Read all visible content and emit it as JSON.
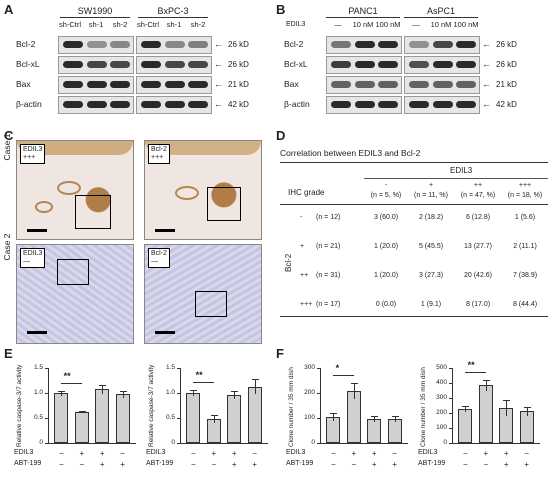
{
  "panels": {
    "A": "A",
    "B": "B",
    "C": "C",
    "D": "D",
    "E": "E",
    "F": "F"
  },
  "panelA": {
    "groups": [
      {
        "title": "SW1990",
        "lanes": [
          "sh-Ctrl",
          "sh-1",
          "sh-2"
        ]
      },
      {
        "title": "BxPC-3",
        "lanes": [
          "sh-Ctrl",
          "sh-1",
          "sh-2"
        ]
      }
    ],
    "rows": [
      "Bcl-2",
      "Bcl-xL",
      "Bax",
      "β-actin"
    ],
    "kd": [
      "26 kD",
      "26 kD",
      "21 kD",
      "42 kD"
    ]
  },
  "panelB": {
    "treatment_label": "EDIL3",
    "groups": [
      {
        "title": "PANC1",
        "lanes": [
          "—",
          "10 nM",
          "100 nM"
        ]
      },
      {
        "title": "AsPC1",
        "lanes": [
          "—",
          "10 nM",
          "100 nM"
        ]
      }
    ],
    "rows": [
      "Bcl-2",
      "Bcl-xL",
      "Bax",
      "β-actin"
    ],
    "kd": [
      "26 kD",
      "26 kD",
      "21 kD",
      "42 kD"
    ]
  },
  "panelC": {
    "cases": [
      "Case 1",
      "Case 2"
    ],
    "labels": [
      [
        "EDIL3",
        "+++"
      ],
      [
        "Bcl-2",
        "+++"
      ],
      [
        "EDIL3",
        "—"
      ],
      [
        "Bcl-2",
        "—"
      ]
    ],
    "colors": {
      "brown": "#a87a45",
      "blue": "#a9abd0",
      "bg": "#e9e4ea"
    }
  },
  "panelD": {
    "title": "Correlation between EDIL3 and Bcl-2",
    "col_header": "EDIL3",
    "row_header": "IHC grade",
    "side_label": "Bcl-2",
    "cols": [
      {
        "grade": "-",
        "n": "(n = 5, %)"
      },
      {
        "grade": "+",
        "n": "(n = 11, %)"
      },
      {
        "grade": "++",
        "n": "(n = 47, %)"
      },
      {
        "grade": "+++",
        "n": "(n = 18, %)"
      }
    ],
    "rows": [
      {
        "grade": "-",
        "n": "(n = 12)",
        "cells": [
          "3 (60.0)",
          "2 (18.2)",
          "6 (12.8)",
          "1 (5.6)"
        ]
      },
      {
        "grade": "+",
        "n": "(n = 21)",
        "cells": [
          "1 (20.0)",
          "5 (45.5)",
          "13 (27.7)",
          "2 (11.1)"
        ]
      },
      {
        "grade": "++",
        "n": "(n = 31)",
        "cells": [
          "1 (20.0)",
          "3 (27.3)",
          "20 (42.6)",
          "7 (38.9)"
        ]
      },
      {
        "grade": "+++",
        "n": "(n = 17)",
        "cells": [
          "0 (0.0)",
          "1 (9.1)",
          "8 (17.0)",
          "8 (44.4)"
        ]
      }
    ]
  },
  "chart_data": [
    {
      "type": "bar",
      "panel": "E",
      "ylabel": "Relative caspase-3/7 activity",
      "ylim": [
        0,
        1.5
      ],
      "yticks": [
        "0",
        "0.5",
        "1.0",
        "1.5"
      ],
      "values": [
        1.0,
        0.63,
        1.08,
        0.98
      ],
      "errors": [
        0.05,
        0.02,
        0.09,
        0.07
      ],
      "row_labels": [
        "EDIL3",
        "ABT-199"
      ],
      "conditions": [
        [
          "−",
          "−"
        ],
        [
          "+",
          "−"
        ],
        [
          "+",
          "+"
        ],
        [
          "−",
          "+"
        ]
      ],
      "significance": "**",
      "sig_pair": [
        0,
        1
      ]
    },
    {
      "type": "bar",
      "panel": "E",
      "ylabel": "Relative caspase-3/7 activity",
      "ylim": [
        0,
        1.5
      ],
      "yticks": [
        "0",
        "0.5",
        "1.0",
        "1.5"
      ],
      "values": [
        1.0,
        0.48,
        0.97,
        1.13
      ],
      "errors": [
        0.06,
        0.08,
        0.08,
        0.15
      ],
      "row_labels": [
        "EDIL3",
        "ABT-199"
      ],
      "conditions": [
        [
          "−",
          "−"
        ],
        [
          "+",
          "−"
        ],
        [
          "+",
          "+"
        ],
        [
          "−",
          "+"
        ]
      ],
      "significance": "**",
      "sig_pair": [
        0,
        1
      ]
    },
    {
      "type": "bar",
      "panel": "F",
      "ylabel": "Clone number / 35 mm dish",
      "ylim": [
        0,
        300
      ],
      "yticks": [
        "0",
        "100",
        "200",
        "300"
      ],
      "values": [
        105,
        210,
        97,
        98
      ],
      "errors": [
        15,
        32,
        13,
        12
      ],
      "row_labels": [
        "EDIL3",
        "ABT-199"
      ],
      "conditions": [
        [
          "−",
          "−"
        ],
        [
          "+",
          "−"
        ],
        [
          "+",
          "+"
        ],
        [
          "−",
          "+"
        ]
      ],
      "significance": "*",
      "sig_pair": [
        0,
        1
      ]
    },
    {
      "type": "bar",
      "panel": "F",
      "ylabel": "Clone number / 35 mm dish",
      "ylim": [
        0,
        500
      ],
      "yticks": [
        "0",
        "100",
        "200",
        "300",
        "400",
        "500"
      ],
      "values": [
        228,
        385,
        235,
        213
      ],
      "errors": [
        22,
        38,
        55,
        30
      ],
      "row_labels": [
        "EDIL3",
        "ABT-199"
      ],
      "conditions": [
        [
          "−",
          "−"
        ],
        [
          "+",
          "−"
        ],
        [
          "+",
          "+"
        ],
        [
          "−",
          "+"
        ]
      ],
      "significance": "**",
      "sig_pair": [
        0,
        1
      ]
    }
  ]
}
